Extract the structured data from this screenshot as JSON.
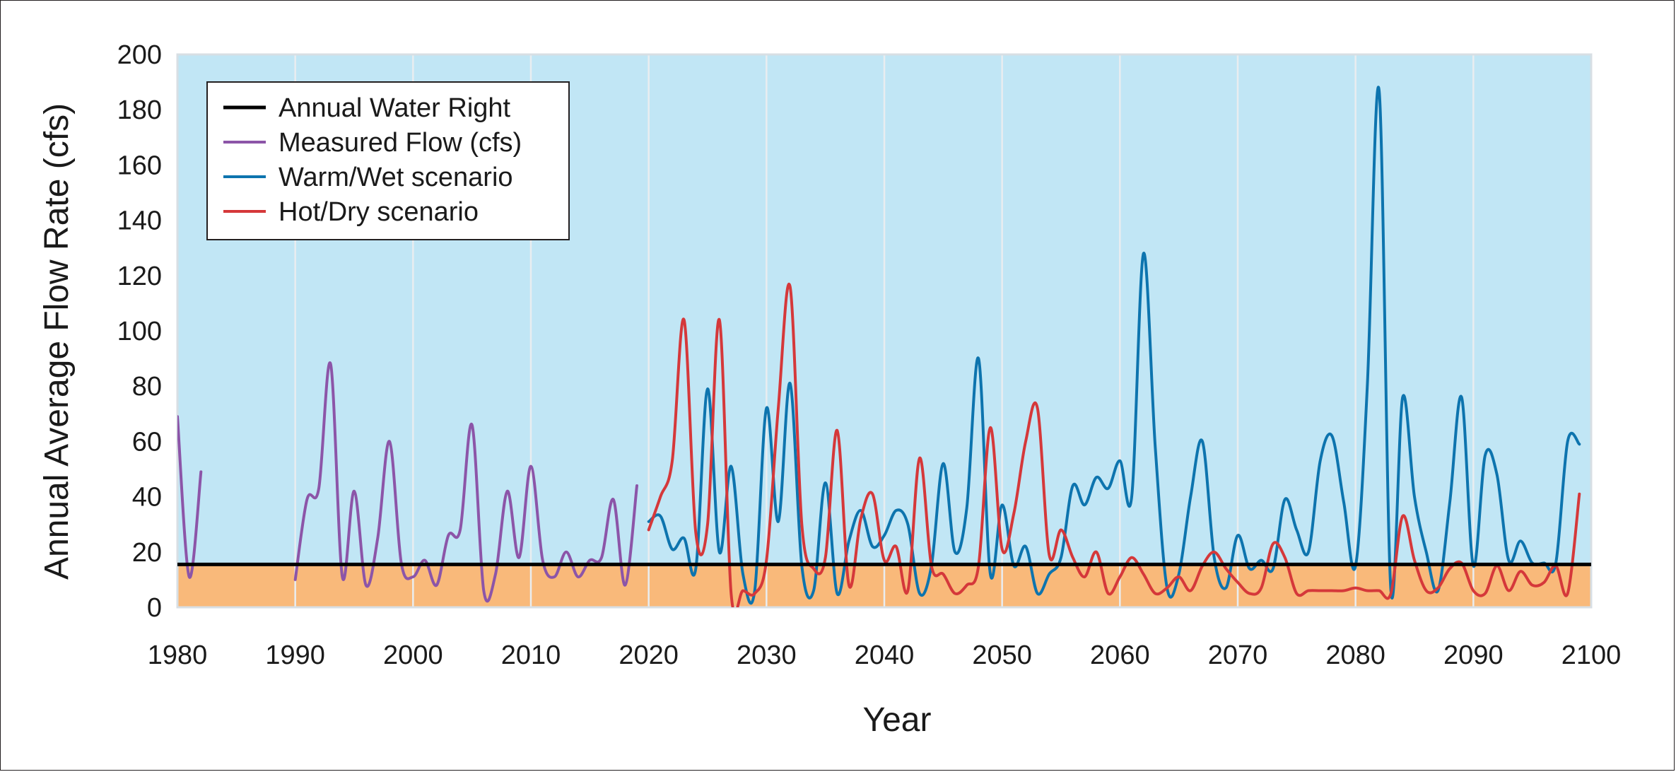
{
  "chart_data": {
    "type": "line",
    "xlabel": "Year",
    "ylabel": "Annual Average Flow Rate (cfs)",
    "xlim": [
      1980,
      2100
    ],
    "ylim": [
      0,
      200
    ],
    "x_ticks": [
      1980,
      1990,
      2000,
      2010,
      2020,
      2030,
      2040,
      2050,
      2060,
      2070,
      2080,
      2090,
      2100
    ],
    "y_ticks": [
      0,
      20,
      40,
      60,
      80,
      100,
      120,
      140,
      160,
      180,
      200
    ],
    "grid": "vertical",
    "legend_position": "top-left",
    "colors": {
      "plot_background": "#c1e6f5",
      "below_water_right": "#f9b97a",
      "grid": "#e9edf0"
    },
    "series": [
      {
        "name": "Annual Water Right",
        "color": "#000000",
        "width": 5,
        "x": [
          1980,
          2100
        ],
        "y": [
          15.5,
          15.5
        ]
      },
      {
        "name": "Measured Flow (cfs)",
        "color": "#8c55a8",
        "width": 4,
        "x": [
          1980,
          1981,
          1982
        ],
        "y": [
          69,
          11,
          49
        ]
      },
      {
        "name": "",
        "color": "#8c55a8",
        "width": 4,
        "x": [
          1990,
          1991,
          1992,
          1993,
          1994,
          1995,
          1996,
          1997,
          1998,
          1999,
          2000,
          2001,
          2002,
          2003,
          2004,
          2005,
          2006,
          2007,
          2008,
          2009,
          2010,
          2011,
          2012,
          2013,
          2014,
          2015,
          2016,
          2017,
          2018,
          2019
        ],
        "y": [
          10,
          39,
          43,
          88,
          11,
          42,
          8,
          25,
          60,
          16,
          11,
          17,
          8,
          26,
          28,
          66,
          6,
          12,
          42,
          18,
          51,
          17,
          11,
          20,
          11,
          17,
          18,
          39,
          8,
          44
        ]
      },
      {
        "name": "Warm/Wet scenario",
        "color": "#0d74ae",
        "width": 4,
        "x": [
          2020,
          2021,
          2022,
          2023,
          2024,
          2025,
          2026,
          2027,
          2028,
          2029,
          2030,
          2031,
          2032,
          2033,
          2034,
          2035,
          2036,
          2037,
          2038,
          2039,
          2040,
          2041,
          2042,
          2043,
          2044,
          2045,
          2046,
          2047,
          2048,
          2049,
          2050,
          2051,
          2052,
          2053,
          2054,
          2055,
          2056,
          2057,
          2058,
          2059,
          2060,
          2061,
          2062,
          2063,
          2064,
          2065,
          2066,
          2067,
          2068,
          2069,
          2070,
          2071,
          2072,
          2073,
          2074,
          2075,
          2076,
          2077,
          2078,
          2079,
          2080,
          2081,
          2082,
          2083,
          2084,
          2085,
          2086,
          2087,
          2088,
          2089,
          2090,
          2091,
          2092,
          2093,
          2094,
          2095,
          2096,
          2097,
          2098,
          2099
        ],
        "y": [
          31,
          33,
          21,
          25,
          14,
          79,
          20,
          51,
          12,
          6,
          72,
          31,
          81,
          15,
          6,
          45,
          5,
          24,
          35,
          22,
          26,
          35,
          30,
          5,
          15,
          52,
          20,
          36,
          90,
          12,
          37,
          15,
          22,
          5,
          12,
          18,
          44,
          37,
          47,
          43,
          53,
          40,
          128,
          58,
          7,
          12,
          40,
          60,
          18,
          7,
          26,
          14,
          17,
          14,
          39,
          28,
          20,
          53,
          62,
          38,
          15,
          80,
          187,
          6,
          76,
          40,
          20,
          6,
          38,
          76,
          15,
          55,
          48,
          17,
          24,
          16,
          16,
          16,
          60,
          59
        ]
      },
      {
        "name": "Hot/Dry scenario",
        "color": "#d5383a",
        "width": 4,
        "x": [
          2020,
          2021,
          2022,
          2023,
          2024,
          2025,
          2026,
          2027,
          2028,
          2029,
          2030,
          2031,
          2032,
          2033,
          2034,
          2035,
          2036,
          2037,
          2038,
          2039,
          2040,
          2041,
          2042,
          2043,
          2044,
          2045,
          2046,
          2047,
          2048,
          2049,
          2050,
          2051,
          2052,
          2053,
          2054,
          2055,
          2056,
          2057,
          2058,
          2059,
          2060,
          2061,
          2062,
          2063,
          2064,
          2065,
          2066,
          2067,
          2068,
          2069,
          2070,
          2071,
          2072,
          2073,
          2074,
          2075,
          2076,
          2077,
          2078,
          2079,
          2080,
          2081,
          2082,
          2083,
          2084,
          2085,
          2086,
          2087,
          2088,
          2089,
          2090,
          2091,
          2092,
          2093,
          2094,
          2095,
          2096,
          2097,
          2098,
          2099
        ],
        "y": [
          28,
          40,
          53,
          104,
          27,
          30,
          104,
          5,
          6,
          5,
          17,
          72,
          116,
          30,
          14,
          18,
          64,
          8,
          32,
          41,
          17,
          22,
          6,
          54,
          15,
          12,
          5,
          8,
          15,
          65,
          21,
          34,
          60,
          72,
          19,
          28,
          18,
          11,
          20,
          5,
          11,
          18,
          12,
          5,
          7,
          11,
          6,
          15,
          20,
          14,
          9,
          5,
          7,
          23,
          18,
          5,
          6,
          6,
          6,
          6,
          7,
          6,
          6,
          5,
          33,
          17,
          6,
          7,
          14,
          16,
          6,
          5,
          15,
          6,
          13,
          8,
          9,
          15,
          5,
          41
        ]
      }
    ]
  }
}
